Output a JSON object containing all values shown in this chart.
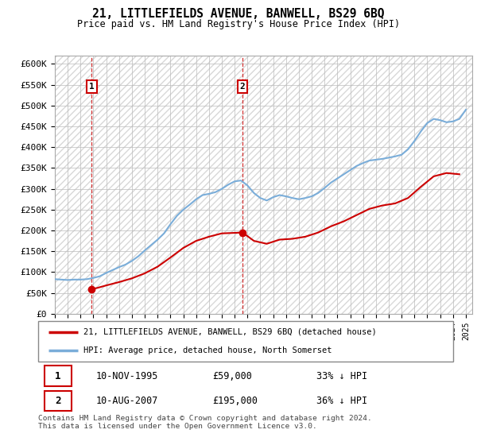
{
  "title": "21, LITTLEFIELDS AVENUE, BANWELL, BS29 6BQ",
  "subtitle": "Price paid vs. HM Land Registry's House Price Index (HPI)",
  "ylim": [
    0,
    620000
  ],
  "yticks": [
    0,
    50000,
    100000,
    150000,
    200000,
    250000,
    300000,
    350000,
    400000,
    450000,
    500000,
    550000,
    600000
  ],
  "ytick_labels": [
    "£0",
    "£50K",
    "£100K",
    "£150K",
    "£200K",
    "£250K",
    "£300K",
    "£350K",
    "£400K",
    "£450K",
    "£500K",
    "£550K",
    "£600K"
  ],
  "xlim_start": 1993.0,
  "xlim_end": 2025.5,
  "property_color": "#cc0000",
  "hpi_color": "#7aadd9",
  "transaction1": {
    "year": 1995.87,
    "price": 59000,
    "label": "1"
  },
  "transaction2": {
    "year": 2007.62,
    "price": 195000,
    "label": "2"
  },
  "legend_label1": "21, LITTLEFIELDS AVENUE, BANWELL, BS29 6BQ (detached house)",
  "legend_label2": "HPI: Average price, detached house, North Somerset",
  "table_row1": [
    "1",
    "10-NOV-1995",
    "£59,000",
    "33% ↓ HPI"
  ],
  "table_row2": [
    "2",
    "10-AUG-2007",
    "£195,000",
    "36% ↓ HPI"
  ],
  "footer": "Contains HM Land Registry data © Crown copyright and database right 2024.\nThis data is licensed under the Open Government Licence v3.0.",
  "property_prices": [
    [
      1995.87,
      59000
    ],
    [
      1996.3,
      62000
    ],
    [
      1997.0,
      68000
    ],
    [
      1998.0,
      76000
    ],
    [
      1999.0,
      85000
    ],
    [
      2000.0,
      97000
    ],
    [
      2001.0,
      113000
    ],
    [
      2002.0,
      135000
    ],
    [
      2003.0,
      158000
    ],
    [
      2004.0,
      175000
    ],
    [
      2005.0,
      185000
    ],
    [
      2006.0,
      193000
    ],
    [
      2007.62,
      195000
    ],
    [
      2008.5,
      175000
    ],
    [
      2009.5,
      168000
    ],
    [
      2010.5,
      178000
    ],
    [
      2011.5,
      180000
    ],
    [
      2012.5,
      185000
    ],
    [
      2013.5,
      195000
    ],
    [
      2014.5,
      210000
    ],
    [
      2015.5,
      222000
    ],
    [
      2016.5,
      237000
    ],
    [
      2017.5,
      252000
    ],
    [
      2018.5,
      260000
    ],
    [
      2019.5,
      265000
    ],
    [
      2020.5,
      278000
    ],
    [
      2021.5,
      305000
    ],
    [
      2022.5,
      330000
    ],
    [
      2023.5,
      338000
    ],
    [
      2024.5,
      335000
    ]
  ],
  "hpi_prices": [
    [
      1993.0,
      83000
    ],
    [
      1993.5,
      82000
    ],
    [
      1994.0,
      81000
    ],
    [
      1994.5,
      82000
    ],
    [
      1995.0,
      82000
    ],
    [
      1995.5,
      83000
    ],
    [
      1996.0,
      86000
    ],
    [
      1996.5,
      90000
    ],
    [
      1997.0,
      98000
    ],
    [
      1997.5,
      105000
    ],
    [
      1998.0,
      112000
    ],
    [
      1998.5,
      118000
    ],
    [
      1999.0,
      127000
    ],
    [
      1999.5,
      138000
    ],
    [
      2000.0,
      152000
    ],
    [
      2000.5,
      165000
    ],
    [
      2001.0,
      178000
    ],
    [
      2001.5,
      193000
    ],
    [
      2002.0,
      215000
    ],
    [
      2002.5,
      235000
    ],
    [
      2003.0,
      250000
    ],
    [
      2003.5,
      262000
    ],
    [
      2004.0,
      275000
    ],
    [
      2004.5,
      285000
    ],
    [
      2005.0,
      288000
    ],
    [
      2005.5,
      292000
    ],
    [
      2006.0,
      300000
    ],
    [
      2006.5,
      310000
    ],
    [
      2007.0,
      318000
    ],
    [
      2007.5,
      320000
    ],
    [
      2008.0,
      308000
    ],
    [
      2008.5,
      290000
    ],
    [
      2009.0,
      278000
    ],
    [
      2009.5,
      272000
    ],
    [
      2010.0,
      280000
    ],
    [
      2010.5,
      285000
    ],
    [
      2011.0,
      282000
    ],
    [
      2011.5,
      278000
    ],
    [
      2012.0,
      275000
    ],
    [
      2012.5,
      278000
    ],
    [
      2013.0,
      282000
    ],
    [
      2013.5,
      290000
    ],
    [
      2014.0,
      302000
    ],
    [
      2014.5,
      315000
    ],
    [
      2015.0,
      325000
    ],
    [
      2015.5,
      335000
    ],
    [
      2016.0,
      345000
    ],
    [
      2016.5,
      355000
    ],
    [
      2017.0,
      362000
    ],
    [
      2017.5,
      368000
    ],
    [
      2018.0,
      370000
    ],
    [
      2018.5,
      372000
    ],
    [
      2019.0,
      375000
    ],
    [
      2019.5,
      378000
    ],
    [
      2020.0,
      382000
    ],
    [
      2020.5,
      395000
    ],
    [
      2021.0,
      415000
    ],
    [
      2021.5,
      438000
    ],
    [
      2022.0,
      458000
    ],
    [
      2022.5,
      468000
    ],
    [
      2023.0,
      465000
    ],
    [
      2023.5,
      460000
    ],
    [
      2024.0,
      462000
    ],
    [
      2024.5,
      468000
    ],
    [
      2025.0,
      490000
    ]
  ]
}
